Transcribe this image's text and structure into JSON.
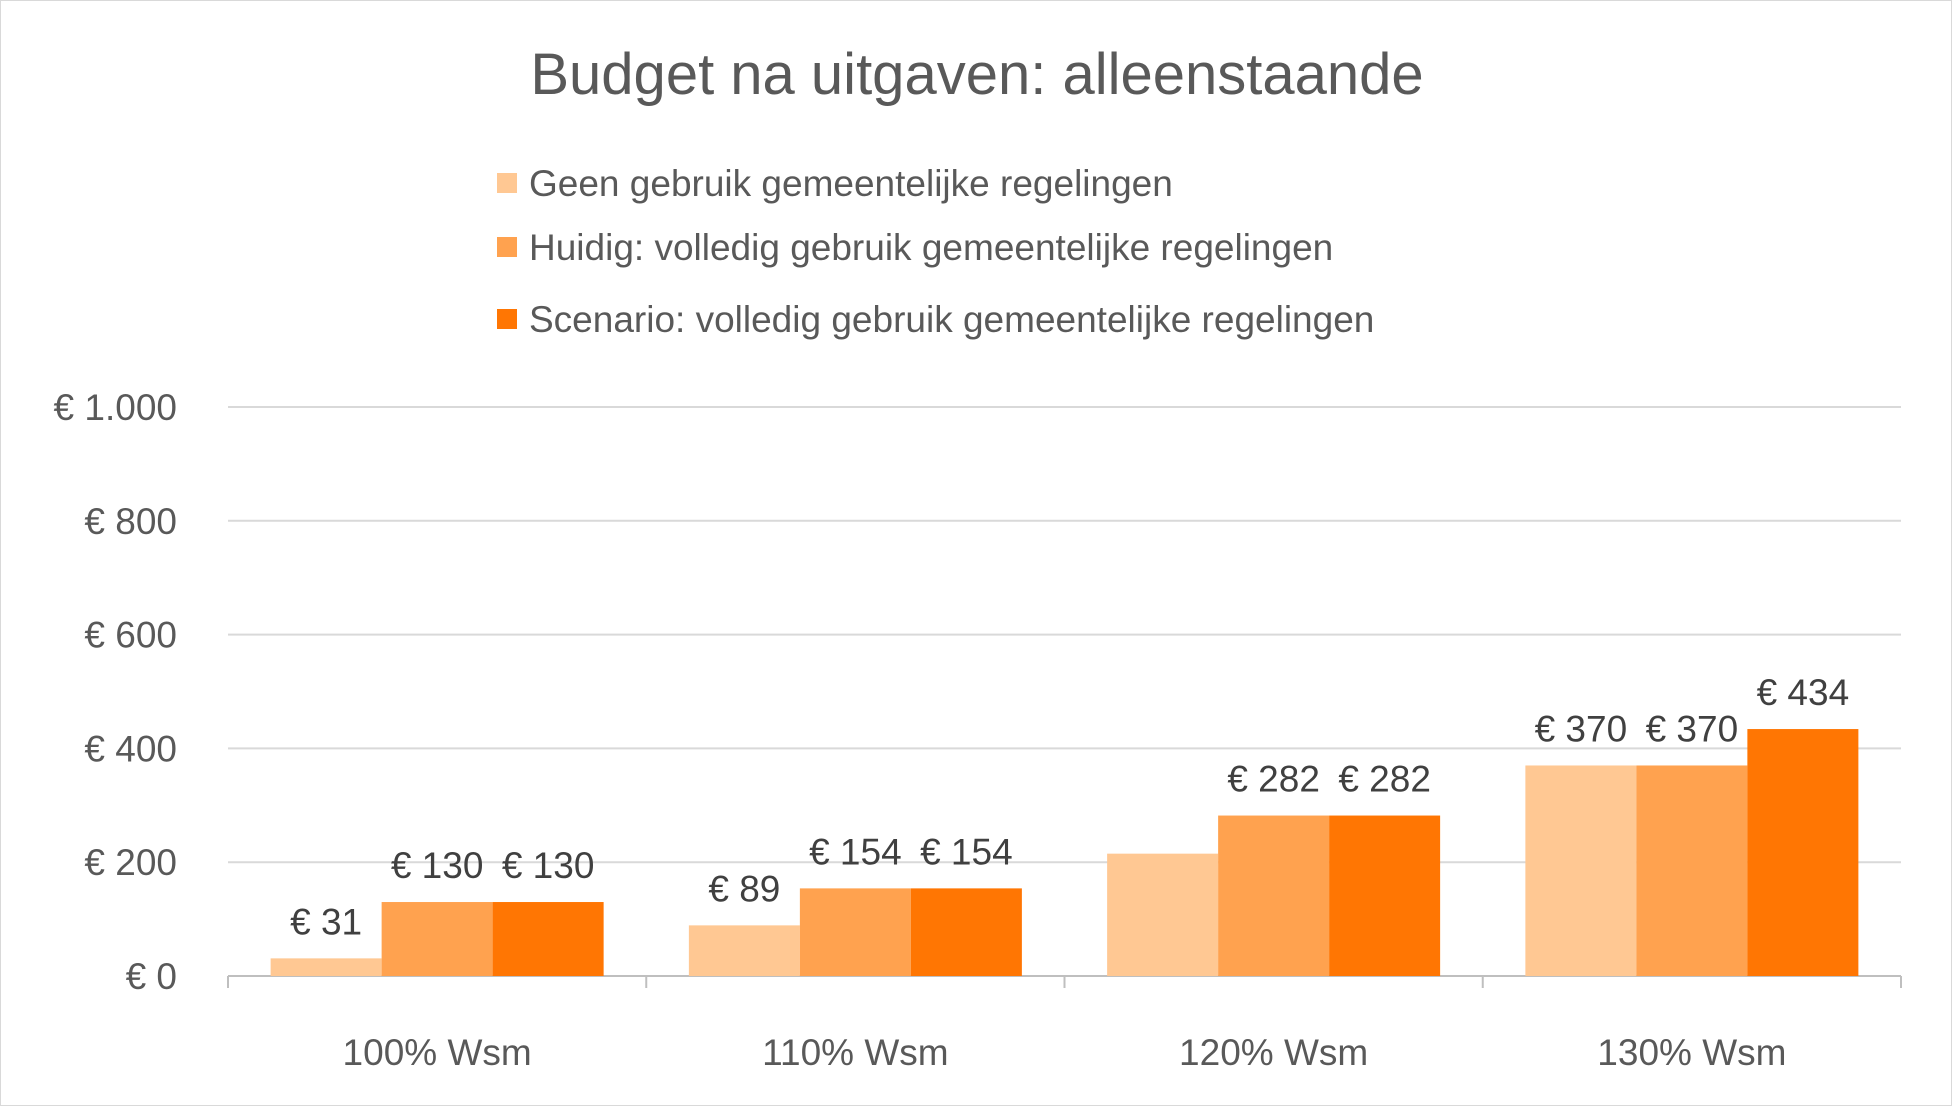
{
  "chart_data": {
    "type": "bar",
    "title": "Budget na uitgaven: alleenstaande",
    "categories": [
      "100% Wsm",
      "110% Wsm",
      "120% Wsm",
      "130% Wsm"
    ],
    "series": [
      {
        "name": "Geen gebruik gemeentelijke regelingen",
        "color": "#FFC893",
        "values": [
          31,
          89,
          215,
          370
        ],
        "labels": [
          "€ 31",
          "€ 89",
          "",
          "€ 370"
        ]
      },
      {
        "name": "Huidig: volledig gebruik gemeentelijke regelingen",
        "color": "#FFA24F",
        "values": [
          130,
          154,
          282,
          370
        ],
        "labels": [
          "€ 130",
          "€ 154",
          "€ 282",
          "€ 370"
        ]
      },
      {
        "name": "Scenario: volledig gebruik gemeentelijke regelingen",
        "color": "#FF7603",
        "values": [
          130,
          154,
          282,
          434
        ],
        "labels": [
          "€ 130",
          "€ 154",
          "€ 282",
          "€ 434"
        ]
      }
    ],
    "ylim": [
      0,
      1000
    ],
    "yticks": [
      0,
      200,
      400,
      600,
      800,
      1000
    ],
    "ytick_labels": [
      "€ 0",
      "€ 200",
      "€ 400",
      "€ 600",
      "€ 800",
      "€ 1.000"
    ],
    "xlabel": "",
    "ylabel": "",
    "grid": true,
    "legend_position": "top"
  }
}
